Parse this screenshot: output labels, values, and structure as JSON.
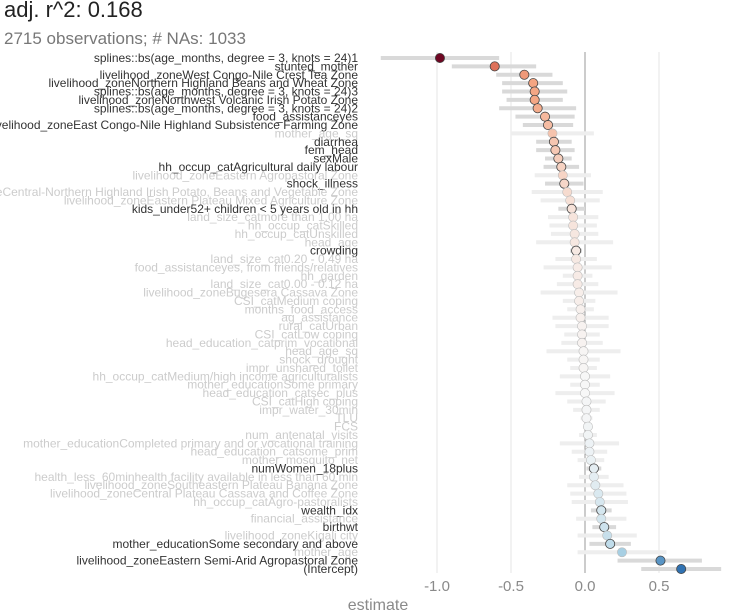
{
  "chart_data": {
    "type": "scatter",
    "title": "adj. r^2: 0.168",
    "subtitle": "2715 observations; # NAs: 1033",
    "xlabel": "estimate",
    "ylabel": "",
    "xlim": [
      -1.5,
      0.92
    ],
    "x_ticks": [
      -1.0,
      -0.5,
      0.0,
      0.5
    ],
    "x_tick_labels": [
      "-1.0",
      "-0.5",
      "0.0",
      "0.5"
    ],
    "grid": true,
    "zero_line": 0,
    "colors": {
      "strong_negative": "#67001f",
      "negative": "#d6604d",
      "mild_negative": "#f4a582",
      "neutral": "#f7f7f7",
      "positive": "#92c5de",
      "strong_positive": "#2166ac",
      "significant_label": "#333333",
      "faded_label": "#cccccc",
      "error_bar": "#d9d9d9",
      "error_bar_faded": "#eeeeee"
    },
    "points": [
      {
        "label": "splines::bs(age_months, degree = 3, knots = 24)1",
        "estimate": -0.98,
        "lo": -1.38,
        "hi": -0.58,
        "sig": true
      },
      {
        "label": "stunted_mother",
        "estimate": -0.61,
        "lo": -0.9,
        "hi": -0.33,
        "sig": true
      },
      {
        "label": "livelihood_zoneWest Congo-Nile Crest Tea Zone",
        "estimate": -0.41,
        "lo": -0.6,
        "hi": -0.22,
        "sig": true
      },
      {
        "label": "livelihood_zoneNorthern Highland Beans and Wheat Zone",
        "estimate": -0.35,
        "lo": -0.56,
        "hi": -0.15,
        "sig": true
      },
      {
        "label": "splines::bs(age_months, degree = 3, knots = 24)3",
        "estimate": -0.34,
        "lo": -0.56,
        "hi": -0.12,
        "sig": true
      },
      {
        "label": "livelihood_zoneNorthwest Volcanic Irish Potato Zone",
        "estimate": -0.34,
        "lo": -0.53,
        "hi": -0.15,
        "sig": true
      },
      {
        "label": "splines::bs(age_months, degree = 3, knots = 24)2",
        "estimate": -0.32,
        "lo": -0.58,
        "hi": -0.06,
        "sig": true
      },
      {
        "label": "food_assistanceyes",
        "estimate": -0.27,
        "lo": -0.47,
        "hi": -0.07,
        "sig": true
      },
      {
        "label": "livelihood_zoneEast Congo-Nile Highland Subsistence Farming Zone",
        "estimate": -0.25,
        "lo": -0.42,
        "hi": -0.08,
        "sig": true
      },
      {
        "label": "mother_age_sq",
        "estimate": -0.22,
        "lo": -0.5,
        "hi": 0.06,
        "sig": false
      },
      {
        "label": "diarrhea",
        "estimate": -0.21,
        "lo": -0.33,
        "hi": -0.09,
        "sig": true
      },
      {
        "label": "fem_head",
        "estimate": -0.2,
        "lo": -0.33,
        "hi": -0.07,
        "sig": true
      },
      {
        "label": "sexMale",
        "estimate": -0.18,
        "lo": -0.27,
        "hi": -0.09,
        "sig": true
      },
      {
        "label": "hh_occup_catAgricultural daily labour",
        "estimate": -0.16,
        "lo": -0.28,
        "hi": -0.04,
        "sig": true
      },
      {
        "label": "livelihood_zoneEastern Agropastoral Zone",
        "estimate": -0.15,
        "lo": -0.34,
        "hi": 0.04,
        "sig": false
      },
      {
        "label": "shock_illness",
        "estimate": -0.14,
        "lo": -0.27,
        "hi": -0.01,
        "sig": true
      },
      {
        "label": "livelihood_zoneCentral-Northern Highland Irish Potato, Beans and Vegetable Zone",
        "estimate": -0.12,
        "lo": -0.36,
        "hi": 0.12,
        "sig": false
      },
      {
        "label": "livelihood_zoneEastern Plateau Mixed Agriculture Zone",
        "estimate": -0.1,
        "lo": -0.3,
        "hi": 0.1,
        "sig": false
      },
      {
        "label": "kids_under52+ children < 5 years old in hh",
        "estimate": -0.09,
        "lo": -0.18,
        "hi": 0.0,
        "sig": true
      },
      {
        "label": "land_size_catmore than 1.00 ha",
        "estimate": -0.08,
        "lo": -0.25,
        "hi": 0.09,
        "sig": false
      },
      {
        "label": "hh_occup_catSkilled",
        "estimate": -0.08,
        "lo": -0.24,
        "hi": 0.08,
        "sig": false
      },
      {
        "label": "hh_occup_catUnskilled",
        "estimate": -0.07,
        "lo": -0.23,
        "hi": 0.09,
        "sig": false
      },
      {
        "label": "head_age",
        "estimate": -0.07,
        "lo": -0.33,
        "hi": 0.19,
        "sig": false
      },
      {
        "label": "crowding",
        "estimate": -0.06,
        "lo": -0.1,
        "hi": -0.02,
        "sig": true
      },
      {
        "label": "land_size_cat0.20 - 0.49 ha",
        "estimate": -0.06,
        "lo": -0.2,
        "hi": 0.08,
        "sig": false
      },
      {
        "label": "food_assistanceyes, from friends/relatives",
        "estimate": -0.05,
        "lo": -0.28,
        "hi": 0.18,
        "sig": false
      },
      {
        "label": "hh_garden",
        "estimate": -0.05,
        "lo": -0.15,
        "hi": 0.05,
        "sig": false
      },
      {
        "label": "land_size_cat0.00 - 0.12 ha",
        "estimate": -0.05,
        "lo": -0.19,
        "hi": 0.09,
        "sig": false
      },
      {
        "label": "livelihood_zoneBugesera Cassava Zone",
        "estimate": -0.04,
        "lo": -0.3,
        "hi": 0.22,
        "sig": false
      },
      {
        "label": "CSI_catMedium coping",
        "estimate": -0.04,
        "lo": -0.15,
        "hi": 0.07,
        "sig": false
      },
      {
        "label": "months_food_access",
        "estimate": -0.03,
        "lo": -0.12,
        "hi": 0.06,
        "sig": false
      },
      {
        "label": "ag_assistance",
        "estimate": -0.03,
        "lo": -0.22,
        "hi": 0.16,
        "sig": false
      },
      {
        "label": "rural_catUrban",
        "estimate": -0.02,
        "lo": -0.2,
        "hi": 0.16,
        "sig": false
      },
      {
        "label": "CSI_catLow coping",
        "estimate": -0.02,
        "lo": -0.14,
        "hi": 0.1,
        "sig": false
      },
      {
        "label": "head_education_catprim_vocational",
        "estimate": -0.02,
        "lo": -0.16,
        "hi": 0.12,
        "sig": false
      },
      {
        "label": "head_age_sq",
        "estimate": -0.01,
        "lo": -0.26,
        "hi": 0.24,
        "sig": false
      },
      {
        "label": "shock_drought",
        "estimate": -0.01,
        "lo": -0.12,
        "hi": 0.1,
        "sig": false
      },
      {
        "label": "impr_unshared_toilet",
        "estimate": -0.01,
        "lo": -0.1,
        "hi": 0.08,
        "sig": false
      },
      {
        "label": "hh_occup_catMedium/high income agriculturalists",
        "estimate": 0.0,
        "lo": -0.17,
        "hi": 0.17,
        "sig": false
      },
      {
        "label": "mother_educationSome primary",
        "estimate": 0.0,
        "lo": -0.1,
        "hi": 0.1,
        "sig": false
      },
      {
        "label": "head_education_catsec_plus",
        "estimate": 0.0,
        "lo": -0.2,
        "hi": 0.2,
        "sig": false
      },
      {
        "label": "CSI_catHigh coping",
        "estimate": 0.01,
        "lo": -0.12,
        "hi": 0.14,
        "sig": false
      },
      {
        "label": "impr_water_30min",
        "estimate": 0.01,
        "lo": -0.08,
        "hi": 0.1,
        "sig": false
      },
      {
        "label": "TLU",
        "estimate": 0.01,
        "lo": -0.03,
        "hi": 0.05,
        "sig": false
      },
      {
        "label": "FCS",
        "estimate": 0.02,
        "lo": -0.01,
        "hi": 0.05,
        "sig": false
      },
      {
        "label": "num_antenatal_visits",
        "estimate": 0.02,
        "lo": -0.04,
        "hi": 0.08,
        "sig": false
      },
      {
        "label": "mother_educationCompleted primary and or vocational training",
        "estimate": 0.03,
        "lo": -0.17,
        "hi": 0.23,
        "sig": false
      },
      {
        "label": "head_education_catsome_prim",
        "estimate": 0.03,
        "lo": -0.09,
        "hi": 0.15,
        "sig": false
      },
      {
        "label": "mother_mosquito_net",
        "estimate": 0.04,
        "lo": -0.05,
        "hi": 0.13,
        "sig": false
      },
      {
        "label": "numWomen_18plus",
        "estimate": 0.06,
        "lo": 0.01,
        "hi": 0.11,
        "sig": true
      },
      {
        "label": "health_less_60minhealth facility available in less than 60 min",
        "estimate": 0.06,
        "lo": -0.04,
        "hi": 0.16,
        "sig": false
      },
      {
        "label": "livelihood_zoneSoutheastern Plateau Banana Zone",
        "estimate": 0.07,
        "lo": -0.12,
        "hi": 0.26,
        "sig": false
      },
      {
        "label": "livelihood_zoneCentral Plateau Cassava and Coffee Zone",
        "estimate": 0.09,
        "lo": -0.1,
        "hi": 0.28,
        "sig": false
      },
      {
        "label": "hh_occup_catAgro-pastoralists",
        "estimate": 0.1,
        "lo": -0.09,
        "hi": 0.29,
        "sig": false
      },
      {
        "label": "wealth_idx",
        "estimate": 0.11,
        "lo": 0.04,
        "hi": 0.18,
        "sig": true
      },
      {
        "label": "financial_assistance",
        "estimate": 0.11,
        "lo": -0.06,
        "hi": 0.28,
        "sig": false
      },
      {
        "label": "birthwt",
        "estimate": 0.13,
        "lo": 0.05,
        "hi": 0.21,
        "sig": true
      },
      {
        "label": "livelihood_zoneKigali city",
        "estimate": 0.15,
        "lo": -0.05,
        "hi": 0.35,
        "sig": false
      },
      {
        "label": "mother_educationSome secondary and above",
        "estimate": 0.17,
        "lo": 0.03,
        "hi": 0.31,
        "sig": true
      },
      {
        "label": "mother_age",
        "estimate": 0.25,
        "lo": -0.05,
        "hi": 0.55,
        "sig": false
      },
      {
        "label": "livelihood_zoneEastern Semi-Arid Agropastoral Zone",
        "estimate": 0.51,
        "lo": 0.22,
        "hi": 0.79,
        "sig": true
      },
      {
        "label": "(Intercept)",
        "estimate": 0.65,
        "lo": 0.38,
        "hi": 0.92,
        "sig": true
      }
    ]
  }
}
